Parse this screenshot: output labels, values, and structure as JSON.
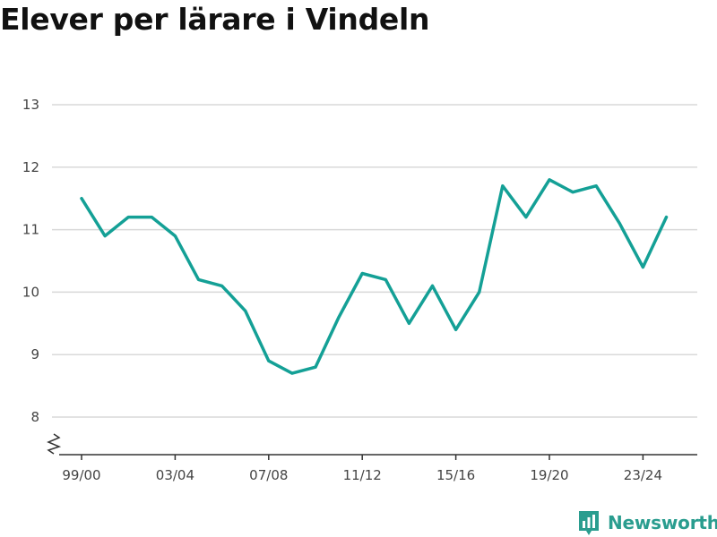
{
  "title": "Elever per lärare i Vindeln",
  "brand": {
    "name": "Newsworthy"
  },
  "colors": {
    "line": "#14a096",
    "grid": "#d9d9d9",
    "axis": "#333333",
    "brand": "#2a9d8f"
  },
  "chart_data": {
    "type": "line",
    "title": "Elever per lärare i Vindeln",
    "xlabel": "",
    "ylabel": "",
    "x": [
      "99/00",
      "00/01",
      "01/02",
      "02/03",
      "03/04",
      "04/05",
      "05/06",
      "06/07",
      "07/08",
      "08/09",
      "09/10",
      "10/11",
      "11/12",
      "12/13",
      "13/14",
      "14/15",
      "15/16",
      "16/17",
      "17/18",
      "18/19",
      "19/20",
      "20/21",
      "21/22",
      "22/23",
      "23/24",
      "24/25"
    ],
    "x_tick_labels": [
      "99/00",
      "03/04",
      "07/08",
      "11/12",
      "15/16",
      "19/20",
      "23/24"
    ],
    "series": [
      {
        "values": [
          11.5,
          10.9,
          11.2,
          11.2,
          10.9,
          10.2,
          10.1,
          9.7,
          8.9,
          8.7,
          8.8,
          9.6,
          10.3,
          10.2,
          9.5,
          10.1,
          9.4,
          10.0,
          11.7,
          11.2,
          11.8,
          11.6,
          11.7,
          11.1,
          10.4,
          11.2
        ]
      }
    ],
    "y_ticks": [
      8,
      9,
      10,
      11,
      12,
      13
    ],
    "ylim": [
      7.4,
      13.5
    ],
    "grid": true,
    "axis_break": true
  }
}
